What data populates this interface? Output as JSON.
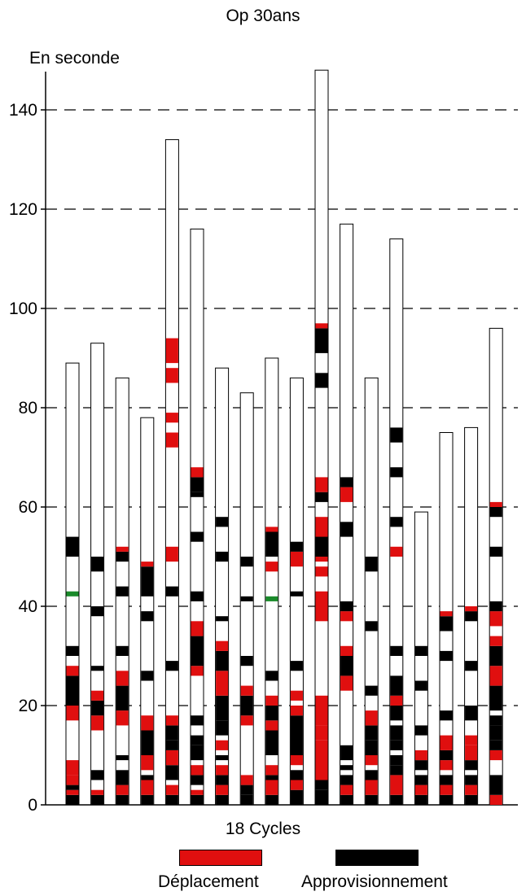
{
  "chart_data": {
    "type": "bar",
    "title": "Op 30ans",
    "ylabel": "En seconde",
    "xlabel": "18 Cycles",
    "ylim": [
      0,
      148
    ],
    "yticks": [
      0,
      20,
      40,
      60,
      80,
      100,
      120,
      140
    ],
    "grid": "dashed horizontal",
    "legend_position": "bottom",
    "legend": [
      {
        "label": "Déplacement",
        "color": "#e00f0f"
      },
      {
        "label": "Approvisionnement",
        "color": "#000000"
      }
    ],
    "colors": {
      "deplacement": "#e00f0f",
      "approvisionnement": "#000000",
      "other": "#ffffff",
      "marker": "#1a8a2a"
    },
    "cycles": [
      {
        "total": 89,
        "segments": [
          [
            0,
            2,
            "a"
          ],
          [
            2,
            3,
            "r"
          ],
          [
            3,
            4,
            "a"
          ],
          [
            4,
            6,
            "r"
          ],
          [
            6,
            9,
            "r"
          ],
          [
            17,
            20,
            "r"
          ],
          [
            20,
            26,
            "a"
          ],
          [
            26,
            28,
            "r"
          ],
          [
            30,
            32,
            "a"
          ],
          [
            42,
            43,
            "g"
          ],
          [
            50,
            54,
            "a"
          ]
        ]
      },
      {
        "total": 93,
        "segments": [
          [
            0,
            2,
            "a"
          ],
          [
            2,
            3,
            "r"
          ],
          [
            5,
            7,
            "a"
          ],
          [
            15,
            18,
            "r"
          ],
          [
            18,
            21,
            "a"
          ],
          [
            21,
            23,
            "r"
          ],
          [
            27,
            28,
            "a"
          ],
          [
            38,
            40,
            "a"
          ],
          [
            47,
            50,
            "a"
          ]
        ]
      },
      {
        "total": 86,
        "segments": [
          [
            0,
            2,
            "a"
          ],
          [
            2,
            4,
            "r"
          ],
          [
            4,
            7,
            "a"
          ],
          [
            9,
            10,
            "a"
          ],
          [
            16,
            19,
            "r"
          ],
          [
            19,
            24,
            "a"
          ],
          [
            24,
            27,
            "r"
          ],
          [
            30,
            32,
            "a"
          ],
          [
            42,
            44,
            "a"
          ],
          [
            49,
            51,
            "a"
          ],
          [
            51,
            52,
            "r"
          ]
        ]
      },
      {
        "total": 78,
        "segments": [
          [
            0,
            2,
            "a"
          ],
          [
            2,
            5,
            "r"
          ],
          [
            5,
            6,
            "a"
          ],
          [
            7,
            10,
            "r"
          ],
          [
            10,
            15,
            "a"
          ],
          [
            15,
            18,
            "r"
          ],
          [
            25,
            27,
            "a"
          ],
          [
            37,
            39,
            "a"
          ],
          [
            42,
            48,
            "a"
          ],
          [
            48,
            49,
            "r"
          ]
        ]
      },
      {
        "total": 134,
        "segments": [
          [
            0,
            2,
            "a"
          ],
          [
            2,
            4,
            "r"
          ],
          [
            5,
            8,
            "a"
          ],
          [
            8,
            11,
            "r"
          ],
          [
            11,
            13,
            "a"
          ],
          [
            13,
            16,
            "a"
          ],
          [
            16,
            18,
            "r"
          ],
          [
            27,
            29,
            "a"
          ],
          [
            42,
            44,
            "a"
          ],
          [
            49,
            52,
            "r"
          ],
          [
            72,
            75,
            "r"
          ],
          [
            77,
            79,
            "r"
          ],
          [
            85,
            88,
            "r"
          ],
          [
            89,
            94,
            "r"
          ]
        ]
      },
      {
        "total": 116,
        "segments": [
          [
            0,
            2,
            "a"
          ],
          [
            2,
            3,
            "r"
          ],
          [
            4,
            6,
            "a"
          ],
          [
            6,
            8,
            "r"
          ],
          [
            9,
            12,
            "a"
          ],
          [
            12,
            14,
            "a"
          ],
          [
            16,
            18,
            "a"
          ],
          [
            26,
            28,
            "r"
          ],
          [
            28,
            34,
            "a"
          ],
          [
            34,
            37,
            "r"
          ],
          [
            41,
            43,
            "a"
          ],
          [
            53,
            55,
            "a"
          ],
          [
            62,
            63,
            "a"
          ],
          [
            63,
            66,
            "a"
          ],
          [
            66,
            68,
            "r"
          ]
        ]
      },
      {
        "total": 88,
        "segments": [
          [
            0,
            2,
            "a"
          ],
          [
            2,
            4,
            "r"
          ],
          [
            4,
            6,
            "a"
          ],
          [
            6,
            8,
            "r"
          ],
          [
            9,
            10,
            "a"
          ],
          [
            11,
            13,
            "r"
          ],
          [
            14,
            17,
            "a"
          ],
          [
            17,
            22,
            "a"
          ],
          [
            22,
            27,
            "r"
          ],
          [
            27,
            31,
            "a"
          ],
          [
            31,
            33,
            "r"
          ],
          [
            37,
            38,
            "a"
          ],
          [
            49,
            51,
            "a"
          ],
          [
            56,
            58,
            "a"
          ]
        ]
      },
      {
        "total": 83,
        "segments": [
          [
            0,
            2,
            "a"
          ],
          [
            2,
            4,
            "a"
          ],
          [
            4,
            6,
            "r"
          ],
          [
            16,
            18,
            "r"
          ],
          [
            18,
            20,
            "a"
          ],
          [
            20,
            22,
            "a"
          ],
          [
            22,
            24,
            "r"
          ],
          [
            28,
            30,
            "a"
          ],
          [
            41,
            42,
            "a"
          ],
          [
            48,
            50,
            "a"
          ]
        ]
      },
      {
        "total": 90,
        "segments": [
          [
            0,
            2,
            "a"
          ],
          [
            2,
            5,
            "r"
          ],
          [
            5,
            6,
            "a"
          ],
          [
            6,
            8,
            "r"
          ],
          [
            10,
            15,
            "a"
          ],
          [
            15,
            17,
            "r"
          ],
          [
            17,
            20,
            "a"
          ],
          [
            20,
            22,
            "r"
          ],
          [
            25,
            27,
            "a"
          ],
          [
            41,
            42,
            "g"
          ],
          [
            47,
            49,
            "r"
          ],
          [
            50,
            55,
            "a"
          ],
          [
            55,
            56,
            "r"
          ]
        ]
      },
      {
        "total": 86,
        "segments": [
          [
            0,
            3,
            "a"
          ],
          [
            3,
            5,
            "r"
          ],
          [
            5,
            7,
            "a"
          ],
          [
            8,
            10,
            "r"
          ],
          [
            10,
            18,
            "a"
          ],
          [
            18,
            20,
            "r"
          ],
          [
            21,
            23,
            "r"
          ],
          [
            27,
            29,
            "a"
          ],
          [
            42,
            43,
            "a"
          ],
          [
            48,
            51,
            "r"
          ],
          [
            51,
            53,
            "a"
          ]
        ]
      },
      {
        "total": 148,
        "segments": [
          [
            0,
            3,
            "a"
          ],
          [
            3,
            5,
            "a"
          ],
          [
            5,
            10,
            "r"
          ],
          [
            10,
            13,
            "r"
          ],
          [
            13,
            16,
            "r"
          ],
          [
            16,
            22,
            "r"
          ],
          [
            37,
            43,
            "r"
          ],
          [
            46,
            48,
            "r"
          ],
          [
            49,
            50,
            "r"
          ],
          [
            50,
            55,
            "a"
          ],
          [
            54,
            58,
            "r"
          ],
          [
            61,
            63,
            "a"
          ],
          [
            63,
            66,
            "r"
          ],
          [
            84,
            87,
            "a"
          ],
          [
            91,
            96,
            "a"
          ],
          [
            96,
            97,
            "r"
          ]
        ]
      },
      {
        "total": 117,
        "segments": [
          [
            0,
            2,
            "a"
          ],
          [
            2,
            4,
            "r"
          ],
          [
            4,
            6,
            "a"
          ],
          [
            7,
            8,
            "a"
          ],
          [
            9,
            10,
            "a"
          ],
          [
            10,
            12,
            "a"
          ],
          [
            23,
            26,
            "r"
          ],
          [
            26,
            30,
            "a"
          ],
          [
            30,
            32,
            "r"
          ],
          [
            37,
            39,
            "r"
          ],
          [
            39,
            41,
            "a"
          ],
          [
            54,
            57,
            "a"
          ],
          [
            61,
            64,
            "r"
          ],
          [
            64,
            66,
            "a"
          ]
        ]
      },
      {
        "total": 86,
        "segments": [
          [
            0,
            2,
            "a"
          ],
          [
            2,
            5,
            "r"
          ],
          [
            5,
            7,
            "a"
          ],
          [
            8,
            10,
            "r"
          ],
          [
            10,
            13,
            "a"
          ],
          [
            13,
            16,
            "a"
          ],
          [
            16,
            19,
            "r"
          ],
          [
            22,
            24,
            "a"
          ],
          [
            35,
            37,
            "a"
          ],
          [
            47,
            50,
            "a"
          ]
        ]
      },
      {
        "total": 114,
        "segments": [
          [
            0,
            2,
            "a"
          ],
          [
            2,
            6,
            "r"
          ],
          [
            6,
            8,
            "a"
          ],
          [
            8,
            10,
            "a"
          ],
          [
            11,
            13,
            "a"
          ],
          [
            13,
            16,
            "a"
          ],
          [
            17,
            20,
            "a"
          ],
          [
            20,
            22,
            "r"
          ],
          [
            22,
            26,
            "a"
          ],
          [
            30,
            32,
            "a"
          ],
          [
            50,
            52,
            "r"
          ],
          [
            56,
            58,
            "a"
          ],
          [
            66,
            68,
            "a"
          ],
          [
            73,
            76,
            "a"
          ]
        ]
      },
      {
        "total": 59,
        "segments": [
          [
            0,
            2,
            "a"
          ],
          [
            2,
            4,
            "r"
          ],
          [
            4,
            6,
            "a"
          ],
          [
            7,
            9,
            "a"
          ],
          [
            9,
            11,
            "r"
          ],
          [
            14,
            16,
            "a"
          ],
          [
            23,
            25,
            "a"
          ],
          [
            30,
            32,
            "a"
          ]
        ]
      },
      {
        "total": 75,
        "segments": [
          [
            0,
            2,
            "a"
          ],
          [
            2,
            4,
            "r"
          ],
          [
            4,
            6,
            "a"
          ],
          [
            7,
            9,
            "r"
          ],
          [
            9,
            11,
            "a"
          ],
          [
            11,
            14,
            "r"
          ],
          [
            17,
            19,
            "a"
          ],
          [
            29,
            31,
            "a"
          ],
          [
            35,
            38,
            "a"
          ],
          [
            38,
            39,
            "r"
          ]
        ]
      },
      {
        "total": 76,
        "segments": [
          [
            0,
            2,
            "a"
          ],
          [
            2,
            4,
            "r"
          ],
          [
            4,
            6,
            "a"
          ],
          [
            7,
            9,
            "a"
          ],
          [
            9,
            12,
            "r"
          ],
          [
            12,
            14,
            "r"
          ],
          [
            17,
            20,
            "a"
          ],
          [
            27,
            29,
            "a"
          ],
          [
            37,
            39,
            "a"
          ],
          [
            39,
            40,
            "r"
          ]
        ]
      },
      {
        "total": 96,
        "segments": [
          [
            0,
            2,
            "r"
          ],
          [
            2,
            6,
            "a"
          ],
          [
            9,
            11,
            "r"
          ],
          [
            11,
            13,
            "a"
          ],
          [
            13,
            16,
            "a"
          ],
          [
            16,
            18,
            "a"
          ],
          [
            19,
            24,
            "a"
          ],
          [
            24,
            28,
            "r"
          ],
          [
            28,
            32,
            "a"
          ],
          [
            32,
            34,
            "r"
          ],
          [
            36,
            39,
            "r"
          ],
          [
            39,
            41,
            "a"
          ],
          [
            50,
            52,
            "a"
          ],
          [
            58,
            60,
            "a"
          ],
          [
            60,
            61,
            "r"
          ]
        ]
      }
    ]
  }
}
